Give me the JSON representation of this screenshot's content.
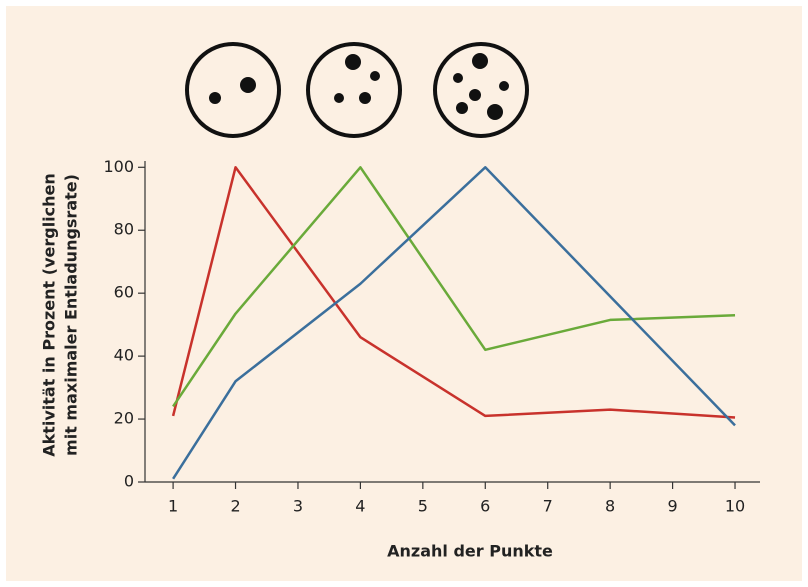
{
  "chart_data": {
    "type": "line",
    "xlabel": "Anzahl der Punkte",
    "ylabel": [
      "Aktivität in Prozent (verglichen",
      "mit maximaler Entladungsrate)"
    ],
    "x": [
      1,
      2,
      4,
      6,
      8,
      10
    ],
    "series": [
      {
        "color": "#c8322c",
        "values": [
          21,
          100,
          46,
          21,
          23,
          20.5
        ]
      },
      {
        "color": "#6aaa3a",
        "values": [
          24,
          53.5,
          100,
          42,
          51.5,
          53
        ]
      },
      {
        "color": "#3b6f9c",
        "values": [
          1,
          32,
          63,
          100,
          59,
          18
        ]
      }
    ],
    "xlim": [
      0.55,
      10.4
    ],
    "ylim": [
      0,
      102
    ],
    "xticks": [
      1,
      2,
      3,
      4,
      5,
      6,
      7,
      8,
      9,
      10
    ],
    "yticks": [
      0,
      20,
      40,
      60,
      80,
      100
    ],
    "grid": false
  }
}
